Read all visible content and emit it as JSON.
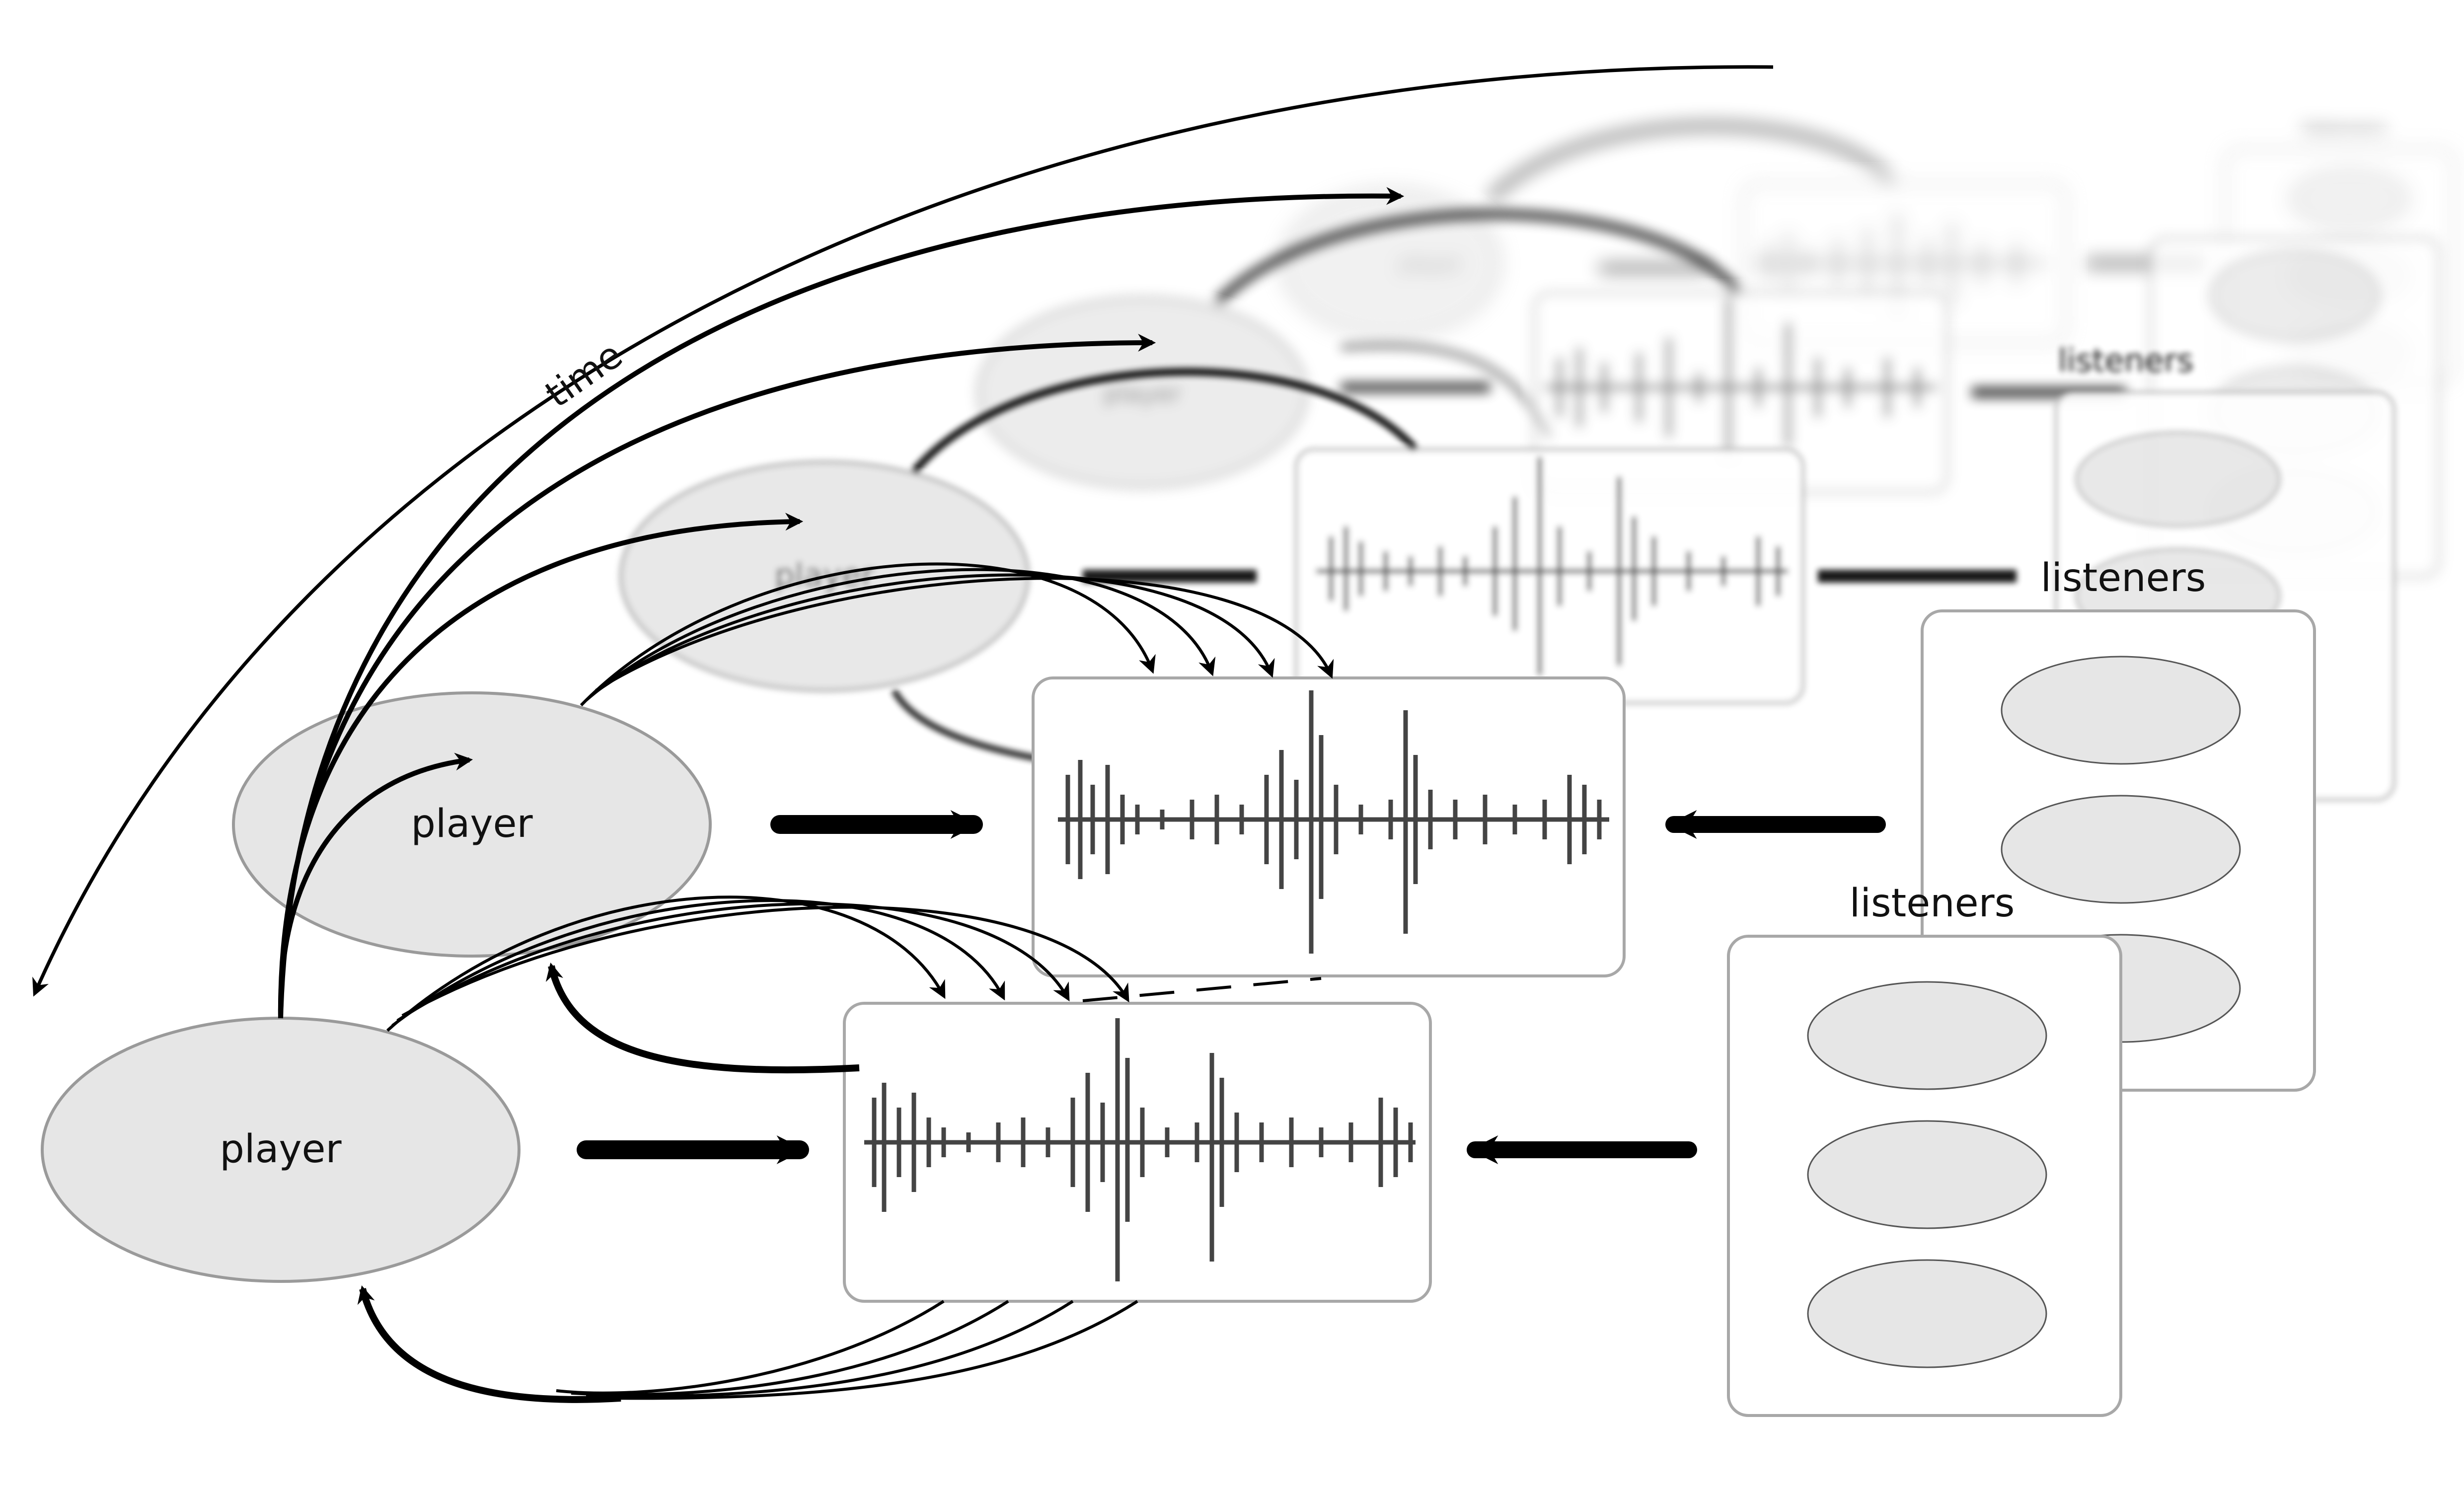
{
  "diagram": {
    "time_label": "time",
    "player_label": "player",
    "listeners_label": "listeners",
    "colors": {
      "ellipse_fill": "#e6e6e6",
      "ellipse_stroke": "#9a9a9a",
      "arrow": "#000000",
      "waveform": "#444444",
      "panel_stroke": "#a8a8a8"
    }
  }
}
